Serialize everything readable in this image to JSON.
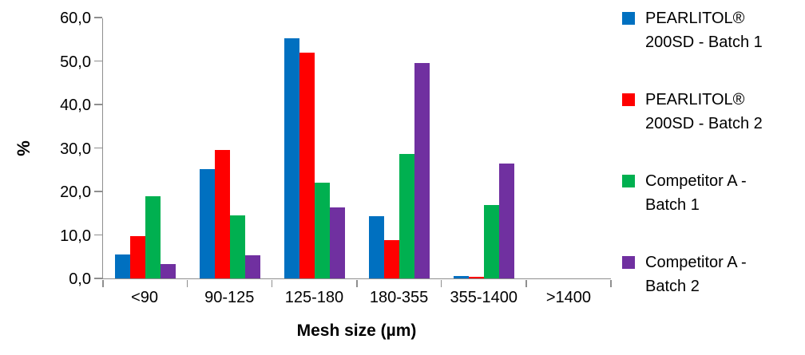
{
  "chart_data": {
    "type": "bar",
    "title": "",
    "xlabel": "Mesh size (µm)",
    "ylabel": "%",
    "ylim": [
      0,
      60
    ],
    "ytick_step": 10,
    "yticks": [
      "0,0",
      "10,0",
      "20,0",
      "30,0",
      "40,0",
      "50,0",
      "60,0"
    ],
    "categories": [
      "<90",
      "90-125",
      "125-180",
      "180-355",
      "355-1400",
      ">1400"
    ],
    "series": [
      {
        "name": "PEARLITOL® 200SD - Batch 1",
        "label_lines": [
          "PEARLITOL®",
          "200SD - Batch 1"
        ],
        "color": "#0070C0",
        "values": [
          5.5,
          25.2,
          55.2,
          14.4,
          0.5,
          0.0
        ]
      },
      {
        "name": "PEARLITOL® 200SD - Batch 2",
        "label_lines": [
          "PEARLITOL®",
          "200SD - Batch 2"
        ],
        "color": "#FF0000",
        "values": [
          9.7,
          29.6,
          52.0,
          8.9,
          0.3,
          0.0
        ]
      },
      {
        "name": "Competitor A - Batch 1",
        "label_lines": [
          "Competitor A -",
          "Batch 1"
        ],
        "color": "#00B050",
        "values": [
          18.9,
          14.5,
          22.0,
          28.7,
          16.8,
          0.0
        ]
      },
      {
        "name": "Competitor A - Batch 2",
        "label_lines": [
          "Competitor A -",
          "Batch 2"
        ],
        "color": "#7030A0",
        "values": [
          3.3,
          5.3,
          16.3,
          49.5,
          26.4,
          0.0
        ]
      }
    ],
    "legend_position": "right",
    "grid": false,
    "axis_color": "#8f8f8f",
    "background": "#ffffff"
  }
}
